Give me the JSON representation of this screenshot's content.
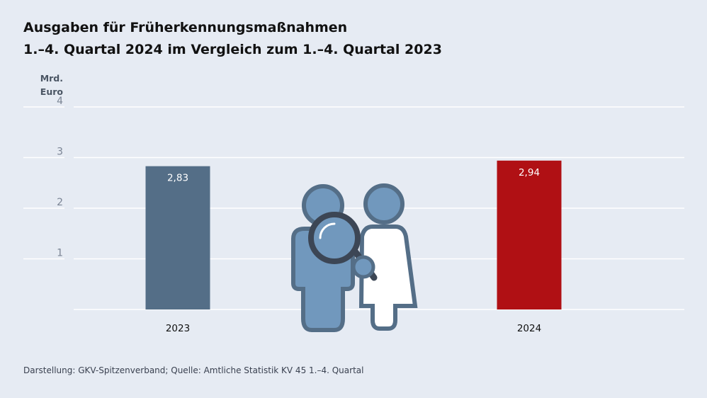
{
  "chart_data": {
    "type": "bar",
    "title": "Ausgaben für Früherkennungsmaßnahmen",
    "subtitle": "1.–4. Quartal 2024 im Vergleich zum 1.–4. Quartal 2023",
    "ylabel_lines": [
      "Mrd.",
      "Euro"
    ],
    "categories": [
      "2023",
      "2024"
    ],
    "values": [
      2.83,
      2.94
    ],
    "value_labels": [
      "2,83",
      "2,94"
    ],
    "bar_colors": [
      "#546e87",
      "#b01014"
    ],
    "y_ticks": [
      1,
      2,
      3,
      4
    ],
    "ylim": [
      0,
      4
    ],
    "grid": true,
    "legend": "none"
  },
  "footer": {
    "source": "Darstellung: GKV-Spitzenverband; Quelle: Amtliche Statistik KV 45 1.–4. Quartal"
  },
  "illustration": {
    "icon": "people-magnifier-icon",
    "colors": {
      "figure": "#7198bd",
      "outline": "#546e87",
      "lens": "#3c4655"
    }
  }
}
